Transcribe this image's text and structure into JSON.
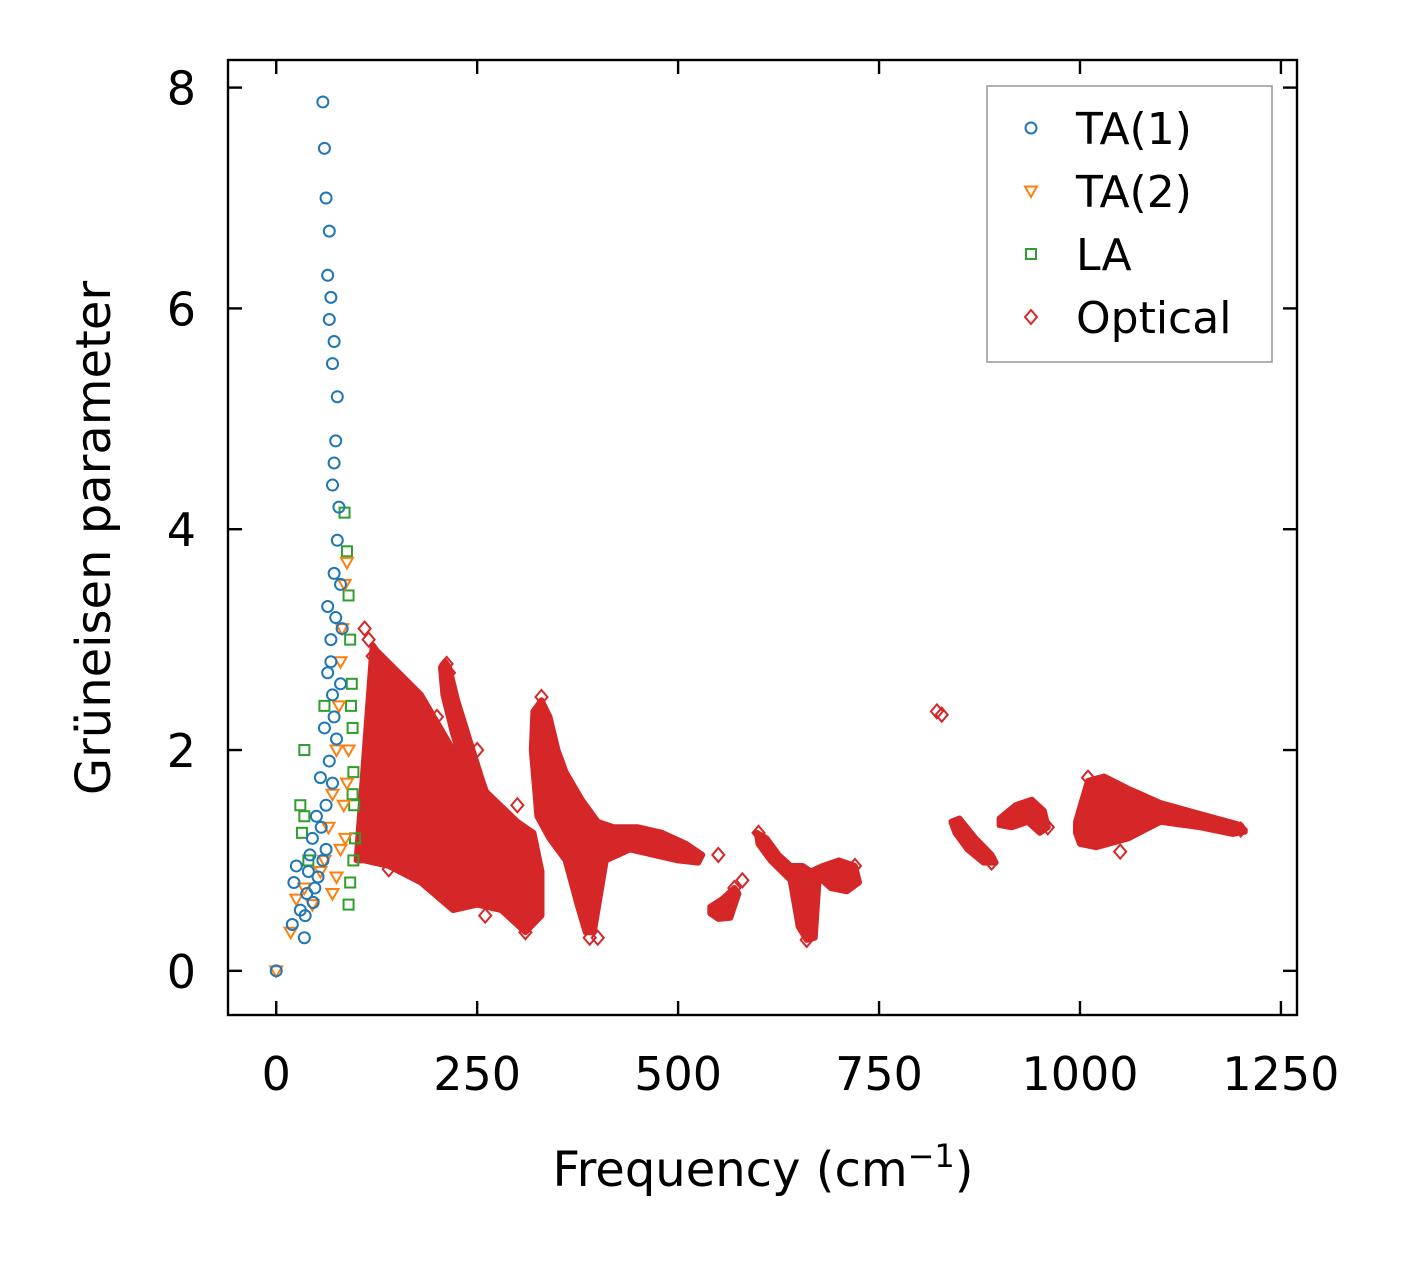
{
  "chart_data": {
    "type": "scatter",
    "title": "",
    "xlabel": "Frequency (cm",
    "xlabel_sup": "−1",
    "xlabel_close": ")",
    "ylabel": "Grüneisen parameter",
    "xlim": [
      -60,
      1270
    ],
    "ylim": [
      -0.4,
      8.25
    ],
    "xticks": [
      0,
      250,
      500,
      750,
      1000,
      1250
    ],
    "yticks": [
      0,
      2,
      4,
      6,
      8
    ],
    "xtick_labels": [
      "0",
      "250",
      "500",
      "750",
      "1000",
      "1250"
    ],
    "ytick_labels": [
      "0",
      "2",
      "4",
      "6",
      "8"
    ],
    "legend_position": "top-right",
    "grid": false,
    "series": [
      {
        "name": "TA(1)",
        "marker": "circle",
        "color": "#1f77b4",
        "points": [
          [
            0,
            0.0
          ],
          [
            20,
            0.42
          ],
          [
            22,
            0.8
          ],
          [
            25,
            0.95
          ],
          [
            30,
            0.55
          ],
          [
            35,
            0.3
          ],
          [
            38,
            0.7
          ],
          [
            40,
            0.9
          ],
          [
            42,
            1.05
          ],
          [
            45,
            1.2
          ],
          [
            48,
            0.75
          ],
          [
            50,
            1.4
          ],
          [
            52,
            0.85
          ],
          [
            55,
            1.75
          ],
          [
            58,
            1.0
          ],
          [
            60,
            2.2
          ],
          [
            62,
            1.5
          ],
          [
            64,
            2.7
          ],
          [
            66,
            1.9
          ],
          [
            68,
            3.0
          ],
          [
            70,
            2.5
          ],
          [
            72,
            3.6
          ],
          [
            74,
            3.2
          ],
          [
            76,
            3.9
          ],
          [
            78,
            4.2
          ],
          [
            80,
            3.5
          ],
          [
            70,
            4.4
          ],
          [
            72,
            4.6
          ],
          [
            74,
            4.8
          ],
          [
            76,
            5.2
          ],
          [
            70,
            5.5
          ],
          [
            72,
            5.7
          ],
          [
            66,
            5.9
          ],
          [
            68,
            6.1
          ],
          [
            64,
            6.3
          ],
          [
            66,
            6.7
          ],
          [
            62,
            7.0
          ],
          [
            60,
            7.45
          ],
          [
            58,
            7.87
          ],
          [
            64,
            3.3
          ],
          [
            68,
            2.8
          ],
          [
            72,
            2.3
          ],
          [
            56,
            1.3
          ],
          [
            46,
            0.62
          ],
          [
            36,
            0.5
          ],
          [
            62,
            1.1
          ],
          [
            70,
            1.7
          ],
          [
            75,
            2.1
          ],
          [
            80,
            2.6
          ],
          [
            82,
            3.1
          ]
        ]
      },
      {
        "name": "TA(2)",
        "marker": "triangle-down",
        "color": "#ff7f0e",
        "points": [
          [
            0,
            0.0
          ],
          [
            18,
            0.35
          ],
          [
            25,
            0.65
          ],
          [
            35,
            0.75
          ],
          [
            45,
            0.6
          ],
          [
            55,
            0.9
          ],
          [
            60,
            1.0
          ],
          [
            65,
            1.3
          ],
          [
            70,
            1.6
          ],
          [
            75,
            2.0
          ],
          [
            78,
            2.4
          ],
          [
            80,
            2.8
          ],
          [
            82,
            3.1
          ],
          [
            85,
            3.5
          ],
          [
            88,
            3.7
          ],
          [
            84,
            1.5
          ],
          [
            86,
            1.2
          ],
          [
            80,
            1.1
          ],
          [
            75,
            0.85
          ],
          [
            70,
            0.7
          ],
          [
            90,
            2.0
          ],
          [
            88,
            1.7
          ]
        ]
      },
      {
        "name": "LA",
        "marker": "square",
        "color": "#2ca02c",
        "points": [
          [
            35,
            2.0
          ],
          [
            30,
            1.5
          ],
          [
            32,
            1.25
          ],
          [
            35,
            1.4
          ],
          [
            40,
            1.0
          ],
          [
            85,
            4.15
          ],
          [
            88,
            3.8
          ],
          [
            90,
            3.4
          ],
          [
            92,
            3.0
          ],
          [
            94,
            2.6
          ],
          [
            95,
            2.2
          ],
          [
            96,
            1.8
          ],
          [
            97,
            1.5
          ],
          [
            98,
            1.2
          ],
          [
            96,
            1.0
          ],
          [
            92,
            0.8
          ],
          [
            90,
            0.6
          ],
          [
            60,
            2.4
          ],
          [
            93,
            2.4
          ],
          [
            95,
            1.6
          ]
        ]
      },
      {
        "name": "Optical",
        "marker": "diamond",
        "color": "#d62728",
        "points": [
          [
            110,
            3.1
          ],
          [
            115,
            3.0
          ],
          [
            120,
            2.85
          ],
          [
            150,
            2.6
          ],
          [
            200,
            2.3
          ],
          [
            212,
            2.78
          ],
          [
            215,
            2.7
          ],
          [
            250,
            2.0
          ],
          [
            300,
            1.5
          ],
          [
            330,
            2.48
          ],
          [
            310,
            0.35
          ],
          [
            390,
            0.3
          ],
          [
            400,
            0.3
          ],
          [
            550,
            1.05
          ],
          [
            570,
            0.75
          ],
          [
            580,
            0.82
          ],
          [
            600,
            1.25
          ],
          [
            660,
            0.28
          ],
          [
            700,
            0.85
          ],
          [
            720,
            0.95
          ],
          [
            822,
            2.35
          ],
          [
            828,
            2.32
          ],
          [
            850,
            1.3
          ],
          [
            890,
            0.98
          ],
          [
            910,
            1.4
          ],
          [
            950,
            1.35
          ],
          [
            960,
            1.3
          ],
          [
            1010,
            1.75
          ],
          [
            1100,
            1.45
          ],
          [
            1200,
            1.28
          ],
          [
            1050,
            1.08
          ],
          [
            140,
            0.92
          ],
          [
            200,
            0.9
          ],
          [
            260,
            0.5
          ]
        ],
        "regions": [
          {
            "x": [
              100,
              120,
              125,
              180,
              220,
              250,
              300,
              320,
              330,
              330,
              310,
              280,
              250,
              220,
              180,
              140,
              110,
              100
            ],
            "y": [
              1.0,
              2.95,
              2.9,
              2.5,
              2.0,
              1.7,
              1.35,
              1.25,
              0.9,
              0.5,
              0.35,
              0.55,
              0.6,
              0.55,
              0.8,
              0.95,
              1.0,
              1.0
            ]
          },
          {
            "x": [
              205,
              210,
              215,
              225,
              240,
              255,
              262,
              250,
              235,
              220,
              208
            ],
            "y": [
              2.75,
              2.8,
              2.75,
              2.45,
              2.1,
              1.75,
              1.6,
              1.55,
              1.8,
              2.15,
              2.5
            ]
          },
          {
            "x": [
              320,
              330,
              340,
              350,
              360,
              380,
              400,
              420,
              450,
              480,
              510,
              530,
              525,
              500,
              470,
              440,
              410,
              395,
              385,
              375,
              360,
              340,
              325,
              318
            ],
            "y": [
              2.35,
              2.45,
              2.3,
              2.0,
              1.8,
              1.55,
              1.35,
              1.3,
              1.3,
              1.25,
              1.15,
              1.05,
              0.98,
              1.0,
              1.05,
              1.1,
              1.0,
              0.35,
              0.35,
              0.6,
              1.0,
              1.2,
              1.4,
              2.0
            ]
          },
          {
            "x": [
              540,
              555,
              570,
              575,
              565,
              550,
              540
            ],
            "y": [
              0.58,
              0.65,
              0.75,
              0.7,
              0.48,
              0.47,
              0.52
            ]
          },
          {
            "x": [
              598,
              610,
              625,
              640,
              655,
              665,
              680,
              700,
              720,
              725,
              710,
              690,
              675,
              670,
              660,
              650,
              640,
              615,
              600
            ],
            "y": [
              1.25,
              1.2,
              1.05,
              0.95,
              0.95,
              0.9,
              0.95,
              1.0,
              0.95,
              0.8,
              0.72,
              0.75,
              0.85,
              0.3,
              0.28,
              0.4,
              0.82,
              1.0,
              1.15
            ]
          },
          {
            "x": [
              840,
              850,
              870,
              890,
              895,
              880,
              860,
              845
            ],
            "y": [
              1.35,
              1.38,
              1.2,
              1.05,
              0.98,
              0.98,
              1.1,
              1.25
            ]
          },
          {
            "x": [
              900,
              920,
              940,
              955,
              960,
              950,
              935,
              915,
              900
            ],
            "y": [
              1.38,
              1.5,
              1.55,
              1.45,
              1.3,
              1.25,
              1.35,
              1.3,
              1.32
            ]
          },
          {
            "x": [
              995,
              1010,
              1030,
              1060,
              1100,
              1150,
              1200,
              1205,
              1190,
              1150,
              1100,
              1060,
              1020,
              1000,
              995
            ],
            "y": [
              1.35,
              1.72,
              1.76,
              1.65,
              1.52,
              1.42,
              1.32,
              1.26,
              1.24,
              1.3,
              1.35,
              1.2,
              1.12,
              1.15,
              1.25
            ]
          }
        ]
      }
    ]
  }
}
